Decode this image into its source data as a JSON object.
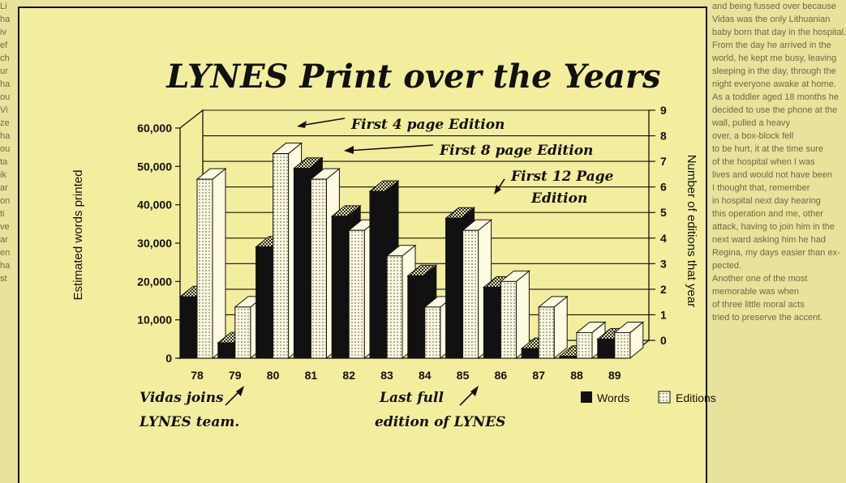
{
  "chart_data": {
    "type": "bar",
    "title": "LYNES Print over the Years",
    "ylabel": "Estimated words printed",
    "y2label": "Number of editions that year",
    "categories": [
      "78",
      "79",
      "80",
      "81",
      "82",
      "83",
      "84",
      "85",
      "86",
      "87",
      "88",
      "89"
    ],
    "ylim": [
      0,
      60000
    ],
    "y2lim": [
      0,
      9
    ],
    "yticks": [
      "0",
      "10,000",
      "20,000",
      "30,000",
      "40,000",
      "50,000",
      "60,000"
    ],
    "y2ticks": [
      "0",
      "1",
      "2",
      "3",
      "4",
      "5",
      "6",
      "7",
      "8",
      "9"
    ],
    "series": [
      {
        "name": "Words",
        "axis": "left",
        "values": [
          16000,
          4000,
          29000,
          49500,
          37000,
          43500,
          21500,
          36500,
          18500,
          2500,
          500,
          5000
        ]
      },
      {
        "name": "Editions",
        "axis": "right",
        "values": [
          7,
          2,
          8,
          7,
          5,
          4,
          2,
          5,
          3,
          2,
          1,
          1
        ]
      }
    ],
    "annotations": [
      "First 4 page Edition",
      "First 8 page Edition",
      "First 12 Page",
      "Edition",
      "Vidas joins",
      "LYNES team.",
      "Last full",
      "edition of LYNES"
    ],
    "legend": "bottom-right",
    "colors": {
      "words": "#111111",
      "editions": "#fffbe0",
      "background": "#f3ee9e"
    }
  },
  "newsprint": {
    "right": [
      "and being fussed over because",
      "Vidas was the only Lithuanian",
      "baby born that day in the hospital.",
      "From the day he arrived in the",
      "world, he kept me busy, leaving",
      "sleeping in the day, through the",
      "night everyone awake at home.",
      "As a toddler aged 18 months he",
      "decided to use the phone at the",
      "wall, pulled a heavy",
      "over, a box-block fell",
      "to be hurt, it at the time sure",
      "of the hospital when I was",
      "lives and would not have been",
      "I thought that, remember",
      "in hospital next day hearing",
      "this operation and me, other",
      "attack, having to join him in the",
      "next ward asking him he had",
      "Regina, my days easier than ex-",
      "pected.",
      "Another one of the most",
      "memorable was when",
      "of three little moral acts",
      "tried to preserve the accent."
    ],
    "left": [
      "Li",
      "ha",
      "iv",
      "ef",
      "ch",
      "ur",
      "ha",
      "ou",
      "Vi",
      "ze",
      "ha",
      "ou",
      "ta",
      "ik",
      "ar",
      "on",
      "ti",
      "ve",
      "ar",
      "en",
      "ha",
      "st"
    ]
  }
}
